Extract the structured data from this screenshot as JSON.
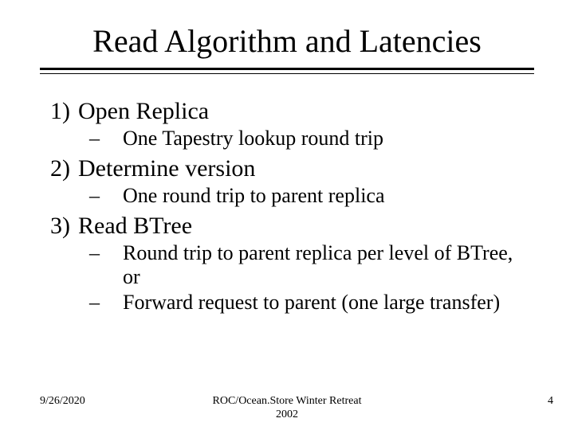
{
  "title": "Read Algorithm and Latencies",
  "items": [
    {
      "num": "1)",
      "label": "Open Replica",
      "subs": [
        "One Tapestry lookup round trip"
      ]
    },
    {
      "num": "2)",
      "label": "Determine version",
      "subs": [
        "One round trip to parent replica"
      ]
    },
    {
      "num": "3)",
      "label": "Read BTree",
      "subs": [
        "Round trip to parent replica per level of BTree, or",
        "Forward request to parent (one large transfer)"
      ]
    }
  ],
  "footer": {
    "date": "9/26/2020",
    "center": "ROC/Ocean.Store Winter Retreat 2002",
    "page": "4"
  },
  "style": {
    "background_color": "#ffffff",
    "text_color": "#000000",
    "title_fontsize": 40,
    "body_fontsize": 30,
    "sub_fontsize": 26,
    "footer_fontsize": 14,
    "font_family": "Times New Roman"
  }
}
